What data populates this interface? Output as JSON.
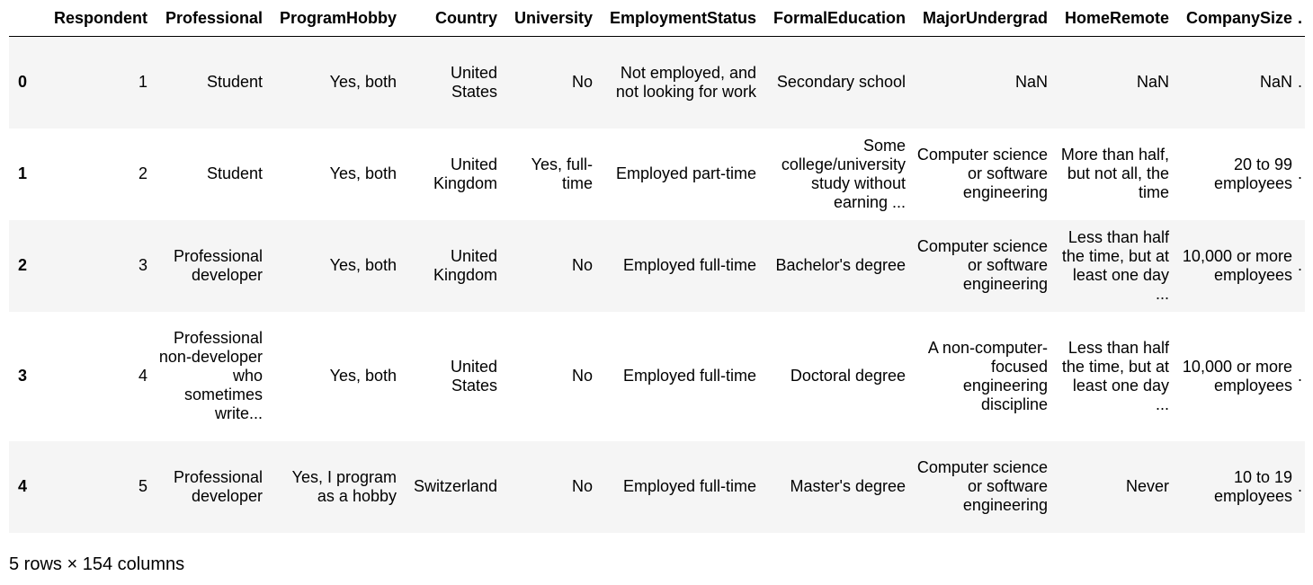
{
  "table": {
    "columns": [
      "",
      "Respondent",
      "Professional",
      "ProgramHobby",
      "Country",
      "University",
      "EmploymentStatus",
      "FormalEducation",
      "MajorUndergrad",
      "HomeRemote",
      "CompanySize",
      "."
    ],
    "rows": [
      {
        "index": "0",
        "cells": [
          "1",
          "Student",
          "Yes, both",
          "United States",
          "No",
          "Not employed, and not looking for work",
          "Secondary school",
          "NaN",
          "NaN",
          "NaN",
          "."
        ]
      },
      {
        "index": "1",
        "cells": [
          "2",
          "Student",
          "Yes, both",
          "United Kingdom",
          "Yes, full-time",
          "Employed part-time",
          "Some college/university study without earning ...",
          "Computer science or software engineering",
          "More than half, but not all, the time",
          "20 to 99 employees",
          "."
        ]
      },
      {
        "index": "2",
        "cells": [
          "3",
          "Professional developer",
          "Yes, both",
          "United Kingdom",
          "No",
          "Employed full-time",
          "Bachelor's degree",
          "Computer science or software engineering",
          "Less than half the time, but at least one day ...",
          "10,000 or more employees",
          "."
        ]
      },
      {
        "index": "3",
        "cells": [
          "4",
          "Professional non-developer who sometimes write...",
          "Yes, both",
          "United States",
          "No",
          "Employed full-time",
          "Doctoral degree",
          "A non-computer-focused engineering discipline",
          "Less than half the time, but at least one day ...",
          "10,000 or more employees",
          "."
        ]
      },
      {
        "index": "4",
        "cells": [
          "5",
          "Professional developer",
          "Yes, I program as a hobby",
          "Switzerland",
          "No",
          "Employed full-time",
          "Master's degree",
          "Computer science or software engineering",
          "Never",
          "10 to 19 employees",
          "."
        ]
      }
    ]
  },
  "footer": {
    "summary": "5 rows × 154 columns"
  }
}
